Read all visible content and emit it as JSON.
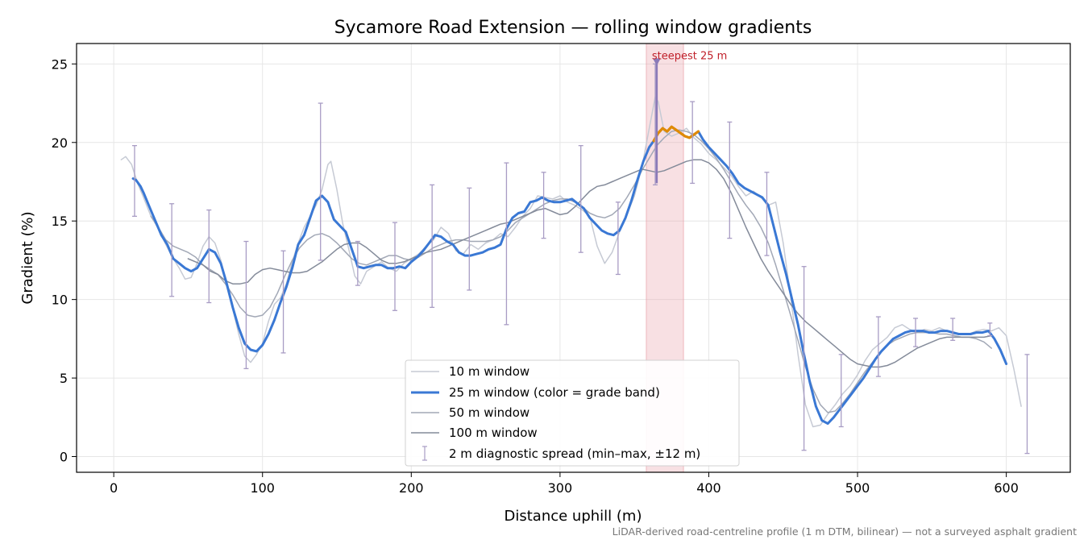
{
  "chart_data": {
    "type": "line",
    "title": "Sycamore Road Extension — rolling window gradients",
    "xlabel": "Distance uphill (m)",
    "ylabel": "Gradient (%)",
    "xlim": [
      -25,
      643
    ],
    "ylim": [
      -1,
      26.3
    ],
    "xticks": [
      0,
      100,
      200,
      300,
      400,
      500,
      600
    ],
    "yticks": [
      0,
      5,
      10,
      15,
      20,
      25
    ],
    "grid": true,
    "legend_position": "lower-center",
    "footnote": "LiDAR-derived road-centreline profile (1 m DTM, bilinear) — not a surveyed asphalt gradient",
    "highlight": {
      "x_start": 358,
      "x_end": 383,
      "label": "steepest 25 m",
      "marker": [
        365,
        25.1
      ],
      "color": "#e8a0a8"
    },
    "series": [
      {
        "name": "10 m window",
        "color": "#c6cad4",
        "x": [
          5,
          8,
          12,
          16,
          20,
          25,
          30,
          35,
          40,
          44,
          48,
          52,
          56,
          60,
          64,
          68,
          72,
          76,
          80,
          84,
          88,
          92,
          96,
          100,
          104,
          108,
          112,
          116,
          120,
          124,
          128,
          132,
          136,
          140,
          144,
          146,
          150,
          154,
          158,
          162,
          166,
          170,
          175,
          180,
          185,
          190,
          195,
          200,
          205,
          210,
          215,
          220,
          225,
          230,
          235,
          240,
          245,
          250,
          255,
          260,
          265,
          270,
          275,
          280,
          285,
          290,
          295,
          300,
          305,
          310,
          315,
          320,
          325,
          330,
          335,
          340,
          345,
          350,
          355,
          360,
          364,
          366,
          370,
          375,
          380,
          385,
          390,
          395,
          400,
          405,
          410,
          415,
          420,
          425,
          430,
          435,
          440,
          445,
          450,
          455,
          460,
          465,
          470,
          475,
          480,
          485,
          490,
          495,
          500,
          505,
          510,
          515,
          520,
          525,
          530,
          535,
          540,
          545,
          550,
          555,
          560,
          565,
          570,
          575,
          580,
          585,
          590,
          595,
          600,
          605,
          610
        ],
        "y": [
          18.9,
          19.1,
          18.6,
          17.4,
          16.5,
          15.3,
          14.5,
          13.5,
          12.6,
          12.0,
          11.3,
          11.4,
          12.3,
          13.4,
          14.0,
          13.6,
          12.5,
          10.8,
          9.4,
          7.8,
          6.4,
          6.0,
          6.5,
          7.2,
          8.6,
          9.7,
          10.1,
          11.0,
          12.4,
          13.6,
          14.6,
          15.3,
          16.0,
          17.0,
          18.6,
          18.8,
          17.0,
          14.8,
          13.2,
          11.5,
          11.0,
          11.8,
          12.1,
          12.4,
          12.0,
          11.8,
          12.3,
          12.6,
          12.9,
          13.4,
          13.8,
          14.6,
          14.2,
          13.1,
          12.9,
          13.5,
          13.2,
          13.6,
          13.8,
          14.2,
          14.0,
          14.6,
          15.3,
          15.8,
          16.6,
          16.5,
          16.4,
          16.6,
          16.2,
          16.0,
          15.7,
          15.3,
          13.4,
          12.3,
          13.0,
          14.3,
          15.4,
          16.6,
          18.4,
          20.9,
          22.9,
          22.6,
          20.7,
          20.4,
          20.6,
          20.9,
          20.3,
          19.9,
          19.3,
          18.9,
          18.4,
          17.9,
          17.2,
          16.6,
          16.9,
          16.5,
          16.0,
          16.2,
          13.6,
          10.2,
          6.5,
          3.3,
          1.9,
          2.0,
          2.7,
          3.3,
          4.0,
          4.5,
          5.2,
          6.1,
          6.8,
          7.2,
          7.6,
          8.2,
          8.4,
          8.1,
          7.9,
          8.1,
          8.0,
          8.2,
          8.0,
          7.8,
          7.8,
          7.8,
          8.0,
          8.1,
          8.0,
          8.2,
          7.7,
          5.6,
          3.2
        ]
      },
      {
        "name": "25 m window (color = grade band)",
        "color": "#3a78d4",
        "band_color": "#e08a00",
        "band_x": [
          361,
          395
        ],
        "x": [
          13,
          15,
          18,
          20,
          24,
          28,
          32,
          36,
          40,
          44,
          48,
          52,
          56,
          60,
          64,
          68,
          72,
          76,
          80,
          84,
          88,
          92,
          96,
          100,
          104,
          108,
          112,
          116,
          120,
          124,
          128,
          132,
          136,
          140,
          144,
          148,
          152,
          156,
          160,
          164,
          168,
          172,
          176,
          180,
          184,
          188,
          192,
          196,
          200,
          204,
          208,
          212,
          216,
          220,
          224,
          228,
          232,
          236,
          240,
          244,
          248,
          252,
          256,
          260,
          264,
          268,
          272,
          276,
          280,
          284,
          288,
          292,
          296,
          300,
          304,
          308,
          312,
          316,
          320,
          324,
          328,
          332,
          336,
          340,
          344,
          348,
          352,
          356,
          360,
          363,
          366,
          369,
          372,
          375,
          378,
          381,
          384,
          387,
          390,
          393,
          396,
          400,
          404,
          408,
          412,
          416,
          420,
          424,
          428,
          432,
          436,
          440,
          444,
          448,
          452,
          456,
          460,
          464,
          468,
          472,
          476,
          480,
          484,
          488,
          492,
          496,
          500,
          504,
          508,
          512,
          516,
          520,
          524,
          528,
          532,
          536,
          540,
          544,
          548,
          552,
          556,
          560,
          564,
          568,
          572,
          576,
          580,
          584,
          588,
          592,
          596,
          600
        ],
        "y": [
          17.7,
          17.6,
          17.2,
          16.8,
          15.9,
          15.0,
          14.1,
          13.5,
          12.6,
          12.3,
          12.0,
          11.8,
          12.0,
          12.6,
          13.2,
          13.0,
          12.3,
          11.0,
          9.5,
          8.2,
          7.2,
          6.8,
          6.7,
          7.1,
          7.8,
          8.7,
          9.8,
          10.8,
          12.0,
          13.5,
          14.1,
          15.2,
          16.3,
          16.6,
          16.2,
          15.1,
          14.7,
          14.3,
          13.2,
          12.1,
          12.0,
          12.1,
          12.2,
          12.2,
          12.0,
          12.0,
          12.1,
          12.0,
          12.4,
          12.7,
          13.1,
          13.6,
          14.1,
          14.0,
          13.7,
          13.5,
          13.0,
          12.8,
          12.8,
          12.9,
          13.0,
          13.2,
          13.3,
          13.5,
          14.5,
          15.2,
          15.5,
          15.6,
          16.2,
          16.3,
          16.5,
          16.3,
          16.2,
          16.2,
          16.3,
          16.4,
          16.1,
          15.8,
          15.2,
          14.8,
          14.4,
          14.2,
          14.1,
          14.4,
          15.2,
          16.3,
          17.6,
          18.8,
          19.7,
          20.1,
          20.6,
          20.9,
          20.7,
          21.0,
          20.8,
          20.6,
          20.4,
          20.3,
          20.5,
          20.7,
          20.2,
          19.7,
          19.3,
          18.9,
          18.5,
          18.0,
          17.4,
          17.1,
          16.9,
          16.7,
          16.5,
          16.0,
          14.5,
          13.0,
          11.6,
          10.0,
          8.4,
          6.5,
          4.7,
          3.2,
          2.3,
          2.1,
          2.5,
          3.0,
          3.5,
          4.0,
          4.5,
          5.0,
          5.6,
          6.2,
          6.7,
          7.1,
          7.5,
          7.7,
          7.9,
          8.0,
          8.0,
          8.0,
          7.9,
          7.9,
          8.0,
          8.0,
          7.9,
          7.8,
          7.8,
          7.8,
          7.9,
          7.9,
          8.0,
          7.5,
          6.8,
          5.9
        ]
      },
      {
        "name": "50 m window",
        "color": "#a2a8b6",
        "x": [
          25,
          30,
          35,
          40,
          45,
          50,
          55,
          60,
          65,
          70,
          75,
          80,
          85,
          90,
          95,
          100,
          105,
          110,
          115,
          120,
          125,
          130,
          135,
          140,
          145,
          150,
          155,
          160,
          165,
          170,
          175,
          180,
          185,
          190,
          195,
          200,
          205,
          210,
          215,
          220,
          225,
          230,
          235,
          240,
          245,
          250,
          255,
          260,
          265,
          270,
          275,
          280,
          285,
          290,
          295,
          300,
          305,
          310,
          315,
          320,
          325,
          330,
          335,
          340,
          345,
          350,
          355,
          360,
          365,
          370,
          375,
          380,
          385,
          390,
          395,
          400,
          405,
          410,
          415,
          420,
          425,
          430,
          435,
          440,
          445,
          450,
          455,
          460,
          465,
          470,
          475,
          480,
          485,
          490,
          495,
          500,
          505,
          510,
          515,
          520,
          525,
          530,
          535,
          540,
          545,
          550,
          555,
          560,
          565,
          570,
          575,
          580,
          585,
          590
        ],
        "y": [
          15.3,
          14.6,
          13.8,
          13.4,
          13.2,
          13.0,
          12.7,
          12.2,
          11.9,
          11.6,
          11.0,
          10.3,
          9.5,
          9.0,
          8.9,
          9.0,
          9.5,
          10.4,
          11.5,
          12.5,
          13.3,
          13.8,
          14.1,
          14.2,
          14.0,
          13.6,
          13.1,
          12.6,
          12.3,
          12.2,
          12.4,
          12.6,
          12.8,
          12.8,
          12.6,
          12.5,
          12.7,
          13.0,
          13.3,
          13.5,
          13.7,
          13.8,
          13.8,
          13.7,
          13.7,
          13.7,
          13.8,
          14.0,
          14.4,
          14.9,
          15.2,
          15.5,
          15.8,
          16.1,
          16.3,
          16.4,
          16.4,
          16.2,
          15.9,
          15.5,
          15.3,
          15.2,
          15.4,
          15.8,
          16.5,
          17.3,
          18.2,
          19.0,
          19.8,
          20.3,
          20.7,
          20.8,
          20.7,
          20.5,
          20.1,
          19.6,
          19.0,
          18.3,
          17.5,
          16.7,
          16.0,
          15.4,
          14.6,
          13.6,
          12.2,
          10.6,
          9.0,
          7.4,
          5.7,
          4.3,
          3.3,
          2.8,
          2.9,
          3.4,
          4.0,
          4.7,
          5.4,
          6.0,
          6.6,
          7.1,
          7.4,
          7.6,
          7.8,
          7.9,
          7.9,
          7.9,
          7.8,
          7.8,
          7.7,
          7.6,
          7.6,
          7.5,
          7.3,
          6.9
        ]
      },
      {
        "name": "100 m window",
        "color": "#848b9a",
        "x": [
          50,
          55,
          60,
          65,
          70,
          75,
          80,
          85,
          90,
          95,
          100,
          105,
          110,
          115,
          120,
          125,
          130,
          135,
          140,
          145,
          150,
          155,
          160,
          165,
          170,
          175,
          180,
          185,
          190,
          195,
          200,
          205,
          210,
          215,
          220,
          225,
          230,
          235,
          240,
          245,
          250,
          255,
          260,
          265,
          270,
          275,
          280,
          285,
          290,
          295,
          300,
          305,
          310,
          315,
          320,
          325,
          330,
          335,
          340,
          345,
          350,
          355,
          360,
          365,
          370,
          375,
          380,
          385,
          390,
          395,
          400,
          405,
          410,
          415,
          420,
          425,
          430,
          435,
          440,
          445,
          450,
          455,
          460,
          465,
          470,
          475,
          480,
          485,
          490,
          495,
          500,
          505,
          510,
          515,
          520,
          525,
          530,
          535,
          540,
          545,
          550,
          555,
          560,
          565,
          570,
          575,
          580,
          585,
          590
        ],
        "y": [
          12.6,
          12.4,
          12.2,
          11.8,
          11.6,
          11.2,
          11.0,
          11.0,
          11.1,
          11.6,
          11.9,
          12.0,
          11.9,
          11.8,
          11.7,
          11.7,
          11.8,
          12.1,
          12.4,
          12.8,
          13.2,
          13.5,
          13.6,
          13.6,
          13.3,
          12.9,
          12.5,
          12.3,
          12.3,
          12.4,
          12.6,
          12.8,
          13.0,
          13.1,
          13.2,
          13.4,
          13.6,
          13.8,
          14.0,
          14.2,
          14.4,
          14.6,
          14.8,
          14.9,
          15.1,
          15.3,
          15.5,
          15.7,
          15.8,
          15.6,
          15.4,
          15.5,
          15.9,
          16.4,
          16.9,
          17.2,
          17.3,
          17.5,
          17.7,
          17.9,
          18.1,
          18.3,
          18.2,
          18.1,
          18.2,
          18.4,
          18.6,
          18.8,
          18.9,
          18.9,
          18.7,
          18.3,
          17.7,
          16.8,
          15.7,
          14.6,
          13.6,
          12.6,
          11.8,
          11.1,
          10.4,
          9.7,
          9.1,
          8.6,
          8.2,
          7.8,
          7.4,
          7.0,
          6.6,
          6.2,
          5.9,
          5.8,
          5.7,
          5.7,
          5.8,
          6.0,
          6.3,
          6.6,
          6.9,
          7.1,
          7.3,
          7.5,
          7.6,
          7.6,
          7.6,
          7.6,
          7.6,
          7.6,
          7.7
        ]
      }
    ],
    "error_bars": {
      "name": "2 m diagnostic spread (min–max, ±12 m)",
      "color": "#a89cc4",
      "x": [
        14,
        39,
        64,
        89,
        114,
        139,
        164,
        189,
        214,
        239,
        264,
        289,
        314,
        339,
        364,
        389,
        414,
        439,
        464,
        489,
        514,
        539,
        564,
        589,
        614
      ],
      "low": [
        15.3,
        10.2,
        9.8,
        5.6,
        6.6,
        12.5,
        10.9,
        9.3,
        9.5,
        10.6,
        8.4,
        13.9,
        13.0,
        11.6,
        17.3,
        17.4,
        13.9,
        12.8,
        0.4,
        1.9,
        5.1,
        7.0,
        7.4,
        7.7,
        0.2
      ],
      "high": [
        19.8,
        16.1,
        15.7,
        13.7,
        13.1,
        22.5,
        13.7,
        14.9,
        17.3,
        17.1,
        18.7,
        18.1,
        19.8,
        16.2,
        25.0,
        22.6,
        21.3,
        18.1,
        12.1,
        6.5,
        8.9,
        8.8,
        8.8,
        8.5,
        6.5
      ]
    }
  }
}
